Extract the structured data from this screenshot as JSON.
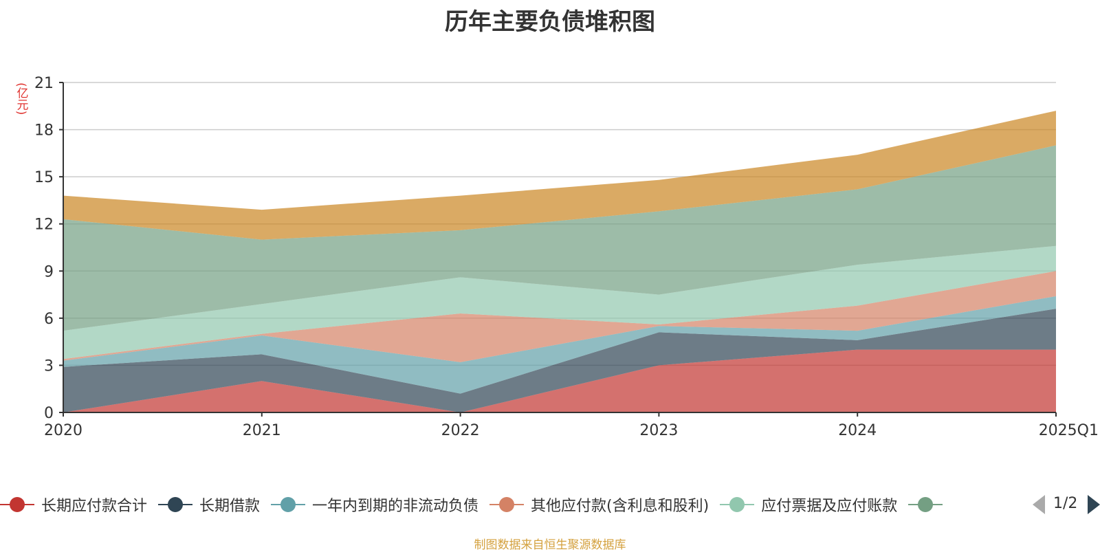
{
  "chart_data": {
    "type": "area",
    "stacked": true,
    "title": "历年主要负债堆积图",
    "ylabel": "(亿元)",
    "xlabel": "",
    "x": [
      "2020",
      "2021",
      "2022",
      "2023",
      "2024",
      "2025Q1"
    ],
    "ylim": [
      0,
      21
    ],
    "yticks": [
      0,
      3,
      6,
      9,
      12,
      15,
      18,
      21
    ],
    "grid": true,
    "series": [
      {
        "name": "长期应付款合计",
        "values": [
          0,
          2.0,
          0,
          3.0,
          4.0,
          4.0
        ]
      },
      {
        "name": "长期借款",
        "values": [
          2.9,
          1.7,
          1.2,
          2.1,
          0.6,
          2.6
        ]
      },
      {
        "name": "一年内到期的非流动负债",
        "values": [
          0.4,
          1.2,
          2.0,
          0.4,
          0.6,
          0.8
        ]
      },
      {
        "name": "其他应付款(含利息和股利)",
        "values": [
          0.1,
          0.1,
          3.1,
          0.1,
          1.6,
          1.6
        ]
      },
      {
        "name": "应付票据及应付账款",
        "values": [
          1.8,
          1.9,
          2.3,
          1.9,
          2.6,
          1.6
        ]
      },
      {
        "name": "",
        "values": [
          7.1,
          4.1,
          3.0,
          5.3,
          4.8,
          6.4
        ]
      },
      {
        "name": "",
        "values": [
          1.5,
          1.9,
          2.2,
          2.0,
          2.2,
          2.2
        ]
      }
    ],
    "legend_position": "bottom"
  },
  "colors": [
    "#c23531",
    "#2f4554",
    "#61a0a8",
    "#d48265",
    "#91c7ae",
    "#749f83",
    "#ca8622"
  ],
  "legend": {
    "visible_items": [
      {
        "label": "长期应付款合计",
        "color": "#c23531"
      },
      {
        "label": "长期借款",
        "color": "#2f4554"
      },
      {
        "label": "一年内到期的非流动负债",
        "color": "#61a0a8"
      },
      {
        "label": "其他应付款(含利息和股利)",
        "color": "#d48265"
      },
      {
        "label": "应付票据及应付账款",
        "color": "#91c7ae"
      },
      {
        "label": "",
        "color": "#749f83"
      }
    ],
    "page_indicator": "1/2"
  },
  "source_note": "制图数据来自恒生聚源数据库"
}
